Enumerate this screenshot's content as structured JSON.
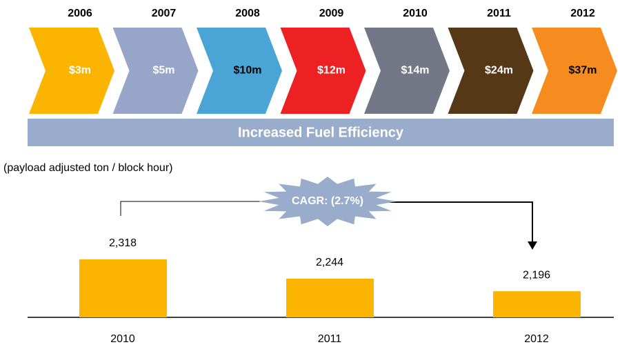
{
  "chart_data": [
    {
      "type": "chevron",
      "categories": [
        "2006",
        "2007",
        "2008",
        "2009",
        "2010",
        "2011",
        "2012"
      ],
      "values": [
        3,
        5,
        10,
        12,
        14,
        24,
        37
      ],
      "value_labels": [
        "$3m",
        "$5m",
        "$10m",
        "$12m",
        "$14m",
        "$24m",
        "$37m"
      ],
      "colors": [
        "#fbb400",
        "#97a6c8",
        "#4aa5d6",
        "#ed2124",
        "#747886",
        "#553815",
        "#f68b1f"
      ],
      "label_colors": [
        "#ffffff",
        "#ffffff",
        "#000000",
        "#ffffff",
        "#ffffff",
        "#ffffff",
        "#000000"
      ]
    },
    {
      "type": "bar",
      "title": "Increased Fuel Efficiency",
      "subtitle": "(payload adjusted ton / block hour)",
      "annotation": "CAGR: (2.7%)",
      "categories": [
        "2010",
        "2011",
        "2012"
      ],
      "values": [
        2318,
        2244,
        2196
      ],
      "value_labels": [
        "2,318",
        "2,244",
        "2,196"
      ],
      "color": "#fbb400",
      "ylim": [
        2096,
        2400
      ]
    }
  ]
}
